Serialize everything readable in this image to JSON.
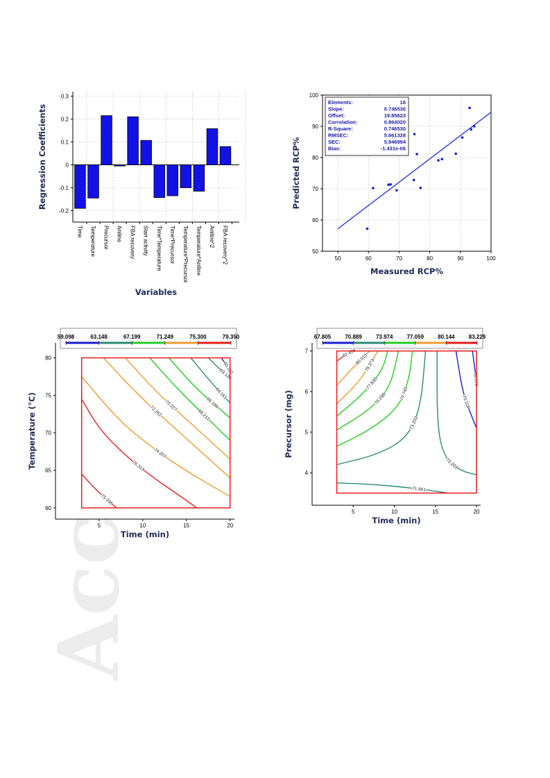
{
  "watermark": "Acc",
  "chart_data": [
    {
      "type": "bar",
      "xlabel": "Variables",
      "ylabel": "Regression Coefficients",
      "ylim": [
        -0.25,
        0.32
      ],
      "yticks": [
        -0.2,
        -0.1,
        0,
        0.1,
        0.2,
        0.3
      ],
      "ytick_labels": [
        "-0.2",
        "-0.1",
        "0",
        "0.1",
        "0.2",
        "0.3"
      ],
      "grid": true,
      "bar_color": "#1212e6",
      "categories": [
        "Time",
        "Temperature",
        "Precursor",
        "Aniline",
        "FBA recovery",
        "Start activity",
        "Time*Temperature",
        "Time*Precursor",
        "Temperature*Precursor",
        "Temperature*Aniline",
        "Aniline^2",
        "FBA recovery^2"
      ],
      "values": [
        -0.19,
        -0.145,
        0.215,
        -0.005,
        0.21,
        0.107,
        -0.143,
        -0.135,
        -0.1,
        -0.115,
        0.158,
        0.08
      ]
    },
    {
      "type": "scatter",
      "xlabel": "Measured RCP%",
      "ylabel": "Predicted RCP%",
      "xlim": [
        45,
        100
      ],
      "ylim": [
        50,
        100
      ],
      "xticks": [
        50,
        60,
        70,
        80,
        90,
        100
      ],
      "yticks": [
        50,
        60,
        70,
        80,
        90,
        100
      ],
      "grid": true,
      "point_color": "#1a1ad6",
      "line_color": "#2a3ae0",
      "regression_line": {
        "x": [
          50,
          100
        ],
        "y": [
          57.18,
          94.51
        ]
      },
      "points": [
        [
          59.6,
          57.2
        ],
        [
          61.5,
          70.2
        ],
        [
          66.5,
          71.3
        ],
        [
          67.2,
          71.4
        ],
        [
          69.2,
          69.5
        ],
        [
          74.8,
          72.8
        ],
        [
          75.0,
          87.5
        ],
        [
          75.8,
          81.1
        ],
        [
          77.0,
          70.3
        ],
        [
          82.8,
          79.1
        ],
        [
          84.0,
          79.5
        ],
        [
          88.5,
          81.2
        ],
        [
          90.6,
          86.4
        ],
        [
          93.0,
          95.9
        ],
        [
          93.5,
          89.0
        ],
        [
          94.5,
          90.0
        ]
      ],
      "stats": [
        {
          "label": "Elements:",
          "value": "16"
        },
        {
          "label": "Slope:",
          "value": "0.746530"
        },
        {
          "label": "Offset:",
          "value": "19.85623"
        },
        {
          "label": "Correlation:",
          "value": "0.864020"
        },
        {
          "label": "R-Square:",
          "value": "0.746530"
        },
        {
          "label": "RMSEC:",
          "value": "5.661328"
        },
        {
          "label": "SEC:",
          "value": "5.846994"
        },
        {
          "label": "Bias:",
          "value": "-1.431e-06"
        }
      ]
    },
    {
      "type": "contour",
      "xlabel": "Time (min)",
      "ylabel": "Temperature (°C)",
      "xlim": [
        0,
        20.5
      ],
      "ylim": [
        58.5,
        82
      ],
      "xticks": [
        5,
        10,
        15,
        20
      ],
      "yticks": [
        60,
        65,
        70,
        75,
        80
      ],
      "box": {
        "x": [
          3,
          20
        ],
        "y": [
          60,
          80
        ]
      },
      "colorbar_labels": [
        "59.098",
        "63.148",
        "67.199",
        "71.249",
        "75.300",
        "79.350"
      ],
      "colorbar_colors": [
        "#1b1bd4",
        "#2b8a72",
        "#22cc22",
        "#f29a30",
        "#e81c1c"
      ],
      "contours": [
        {
          "label": "75.336",
          "color": "#e81c1c",
          "points": [
            [
              3,
              64.5
            ],
            [
              4.8,
              62.2
            ],
            [
              7,
              60
            ]
          ]
        },
        {
          "label": "76.313",
          "color": "#e81c1c",
          "points": [
            [
              3,
              74.5
            ],
            [
              5,
              70.5
            ],
            [
              8,
              67
            ],
            [
              11,
              64.2
            ],
            [
              14,
              61.8
            ],
            [
              16.2,
              60
            ]
          ]
        },
        {
          "label": "74.207",
          "color": "#f29a30",
          "points": [
            [
              3,
              77.5
            ],
            [
              7,
              72
            ],
            [
              10,
              69
            ],
            [
              14,
              65.6
            ],
            [
              20,
              61.5
            ]
          ]
        },
        {
          "label": "72.262",
          "color": "#f29a30",
          "points": [
            [
              5.5,
              80
            ],
            [
              9.5,
              75
            ],
            [
              13.5,
              70.8
            ],
            [
              20,
              64
            ]
          ]
        },
        {
          "label": "70.227",
          "color": "#f29a30",
          "points": [
            [
              8,
              80
            ],
            [
              11.5,
              75.5
            ],
            [
              15,
              71.8
            ],
            [
              20,
              66.5
            ]
          ]
        },
        {
          "label": "68.212",
          "color": "#22cc22",
          "points": [
            [
              10.8,
              80
            ],
            [
              14,
              75.8
            ],
            [
              20,
              69
            ]
          ]
        },
        {
          "label": "66.186",
          "color": "#22cc22",
          "points": [
            [
              13,
              80
            ],
            [
              16,
              76
            ],
            [
              20,
              72
            ]
          ]
        },
        {
          "label": "64.161",
          "color": "#2b8a72",
          "points": [
            [
              15.5,
              80
            ],
            [
              18,
              76.5
            ],
            [
              20,
              74
            ]
          ]
        },
        {
          "label": "63.136",
          "color": "#2b8a72",
          "points": [
            [
              17.5,
              80
            ],
            [
              19,
              78.3
            ],
            [
              20,
              77.3
            ]
          ]
        },
        {
          "label": "65.110",
          "color": "#1b1bd4",
          "points": [
            [
              19,
              80
            ],
            [
              19.6,
              79
            ],
            [
              20,
              78.3
            ]
          ]
        }
      ]
    },
    {
      "type": "contour",
      "xlabel": "Time (min)",
      "ylabel": "Precursor (mg)",
      "xlim": [
        0,
        20.5
      ],
      "ylim": [
        3.2,
        7.2
      ],
      "xticks": [
        5,
        10,
        15,
        20
      ],
      "yticks": [
        4,
        5,
        6,
        7
      ],
      "box": {
        "x": [
          3,
          20
        ],
        "y": [
          3.5,
          7
        ]
      },
      "colorbar_labels": [
        "67.805",
        "70.889",
        "73.974",
        "77.059",
        "80.144",
        "83.229"
      ],
      "colorbar_colors": [
        "#1b1bd4",
        "#2b8a72",
        "#22cc22",
        "#f29a30",
        "#e81c1c"
      ],
      "contours": [
        {
          "label": "82.458",
          "color": "#e81c1c",
          "points": [
            [
              3,
              6.75
            ],
            [
              4,
              6.9
            ],
            [
              5,
              7
            ]
          ]
        },
        {
          "label": "80.915",
          "color": "#f29a30",
          "points": [
            [
              3,
              6.15
            ],
            [
              5,
              6.6
            ],
            [
              7,
              7
            ]
          ]
        },
        {
          "label": "79.373",
          "color": "#f29a30",
          "points": [
            [
              3,
              5.7
            ],
            [
              6,
              6.3
            ],
            [
              8,
              7
            ]
          ]
        },
        {
          "label": "77.830",
          "color": "#22cc22",
          "points": [
            [
              3,
              5.4
            ],
            [
              6,
              5.9
            ],
            [
              8.5,
              6.5
            ],
            [
              9.2,
              7
            ]
          ]
        },
        {
          "label": "76.288",
          "color": "#22cc22",
          "points": [
            [
              3,
              5.05
            ],
            [
              7,
              5.55
            ],
            [
              9.5,
              6.1
            ],
            [
              10.5,
              7
            ]
          ]
        },
        {
          "label": "74.745",
          "color": "#22cc22",
          "points": [
            [
              3,
              4.65
            ],
            [
              7,
              5.05
            ],
            [
              10.5,
              5.6
            ],
            [
              11.8,
              6.3
            ],
            [
              12.2,
              7
            ]
          ]
        },
        {
          "label": "73.203",
          "color": "#2b8a72",
          "points": [
            [
              3,
              4.2
            ],
            [
              8,
              4.45
            ],
            [
              11.5,
              4.85
            ],
            [
              13.2,
              5.6
            ],
            [
              13.8,
              7
            ]
          ]
        },
        {
          "label": "73.203",
          "color": "#2b8a72",
          "points": [
            [
              15.2,
              7
            ],
            [
              15.2,
              5.2
            ],
            [
              16,
              4.4
            ],
            [
              18,
              4.05
            ],
            [
              20,
              3.95
            ]
          ]
        },
        {
          "label": "71.661",
          "color": "#2b8a72",
          "points": [
            [
              3,
              3.75
            ],
            [
              7,
              3.72
            ],
            [
              11,
              3.65
            ],
            [
              15,
              3.55
            ],
            [
              16.5,
              3.5
            ]
          ]
        },
        {
          "label": "68.576",
          "color": "#1b1bd4",
          "points": [
            [
              19.5,
              7
            ],
            [
              19.9,
              6.4
            ],
            [
              20,
              6.2
            ]
          ]
        },
        {
          "label": "70.118",
          "color": "#1b1bd4",
          "points": [
            [
              17.5,
              7
            ],
            [
              18.3,
              6
            ],
            [
              19.2,
              5.5
            ],
            [
              20,
              5.1
            ]
          ]
        }
      ]
    }
  ]
}
